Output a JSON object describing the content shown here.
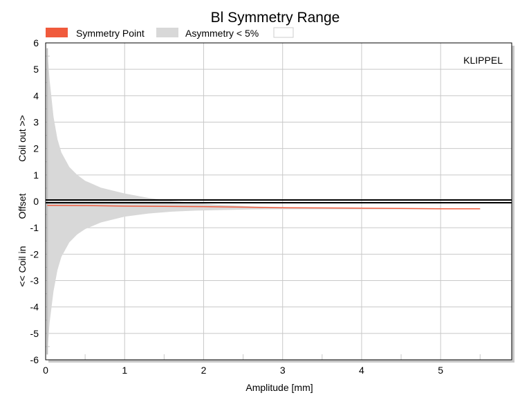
{
  "chart_data": {
    "type": "area",
    "title": "Bl Symmetry Range",
    "xlabel": "Amplitude [mm]",
    "ylabel_parts": [
      "<< Coil in",
      "Offset",
      "Coil out >>"
    ],
    "watermark": "KLIPPEL",
    "xlim": [
      0,
      5.9
    ],
    "ylim": [
      -6,
      6
    ],
    "x_ticks": [
      "0",
      "1",
      "2",
      "3",
      "4",
      "5"
    ],
    "y_ticks": [
      "6",
      "5",
      "4",
      "3",
      "2",
      "1",
      "0",
      "-1",
      "-2",
      "-3",
      "-4",
      "-5",
      "-6"
    ],
    "grid": true,
    "legend": [
      {
        "label": "Symmetry Point",
        "color": "#f05a3c"
      },
      {
        "label": "Asymmetry < 5%",
        "color": "#d8d8d8"
      },
      {
        "label": "",
        "color": "#ffffff"
      }
    ],
    "series": [
      {
        "name": "Asymmetry < 5%",
        "kind": "band",
        "color": "#d8d8d8",
        "x": [
          0.02,
          0.05,
          0.1,
          0.15,
          0.2,
          0.3,
          0.4,
          0.5,
          0.7,
          1.0,
          1.3,
          1.6,
          1.9,
          2.2,
          2.6,
          3.0,
          3.5,
          4.0,
          4.5,
          5.0,
          5.4,
          5.5
        ],
        "upper": [
          5.8,
          4.6,
          3.2,
          2.35,
          1.85,
          1.3,
          1.0,
          0.78,
          0.52,
          0.3,
          0.13,
          0.02,
          -0.06,
          -0.13,
          -0.19,
          -0.22,
          -0.24,
          -0.25,
          -0.26,
          -0.26,
          -0.27,
          -0.27
        ],
        "lower": [
          -5.8,
          -4.6,
          -3.4,
          -2.6,
          -2.1,
          -1.55,
          -1.25,
          -1.05,
          -0.8,
          -0.58,
          -0.46,
          -0.39,
          -0.35,
          -0.33,
          -0.31,
          -0.3,
          -0.3,
          -0.3,
          -0.3,
          -0.3,
          -0.3,
          -0.3
        ]
      },
      {
        "name": "Symmetry Point",
        "kind": "line",
        "color": "#f05a3c",
        "x": [
          0.02,
          0.5,
          1.0,
          1.5,
          2.0,
          2.5,
          3.0,
          3.5,
          4.0,
          4.5,
          5.0,
          5.5
        ],
        "y": [
          -0.15,
          -0.16,
          -0.18,
          -0.19,
          -0.2,
          -0.22,
          -0.24,
          -0.25,
          -0.26,
          -0.27,
          -0.28,
          -0.28
        ]
      }
    ],
    "reference_line": {
      "y": 0,
      "color": "#000000"
    }
  }
}
